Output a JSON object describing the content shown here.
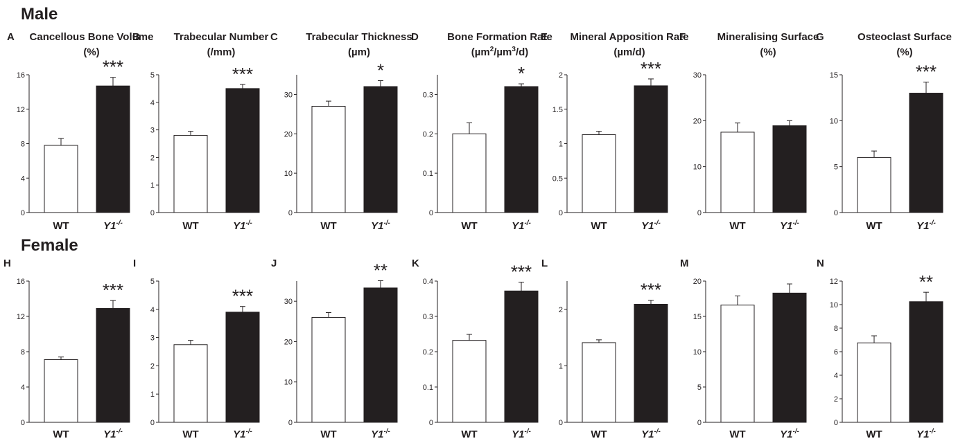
{
  "colors": {
    "wt_bar": "#ffffff",
    "ko_bar": "#231f20",
    "axis": "#231f20",
    "text": "#231f20"
  },
  "groups": [
    {
      "title": "Male"
    },
    {
      "title": "Female"
    }
  ],
  "chart_data": [
    {
      "type": "bar",
      "letter": "A",
      "title": "Cancellous Bone Volume",
      "unit": "(%)",
      "sup": "",
      "unit_after": "",
      "categories": [
        "WT",
        "Y1-/-"
      ],
      "values": [
        7.8,
        14.7
      ],
      "errors": [
        0.8,
        1.0
      ],
      "ylim": [
        0,
        16
      ],
      "yticks": [
        0,
        4,
        8,
        12,
        16
      ],
      "significance": "***"
    },
    {
      "type": "bar",
      "letter": "B",
      "title": "Trabecular Number",
      "unit": "(/mm)",
      "sup": "",
      "unit_after": "",
      "categories": [
        "WT",
        "Y1-/-"
      ],
      "values": [
        2.8,
        4.5
      ],
      "errors": [
        0.15,
        0.15
      ],
      "ylim": [
        0,
        5
      ],
      "yticks": [
        0,
        1,
        2,
        3,
        4,
        5
      ],
      "significance": "***"
    },
    {
      "type": "bar",
      "letter": "C",
      "title": "Trabecular Thickness",
      "unit": "(µm)",
      "sup": "",
      "unit_after": "",
      "categories": [
        "WT",
        "Y1-/-"
      ],
      "values": [
        27,
        32
      ],
      "errors": [
        1.3,
        1.5
      ],
      "ylim": [
        0,
        35
      ],
      "yticks": [
        0,
        10,
        20,
        30
      ],
      "significance": "*"
    },
    {
      "type": "bar",
      "letter": "D",
      "title": "Bone Formation Rate",
      "unit": "(µm",
      "sup": "2",
      "unit_after": "/µm",
      "sup2": "3",
      "unit_tail": "/d)",
      "categories": [
        "WT",
        "Y1-/-"
      ],
      "values": [
        0.2,
        0.32
      ],
      "errors": [
        0.028,
        0.007
      ],
      "ylim": [
        0,
        0.35
      ],
      "yticks": [
        0,
        0.1,
        0.2,
        0.3
      ],
      "significance": "*"
    },
    {
      "type": "bar",
      "letter": "E",
      "title": "Mineral Apposition Rate",
      "unit": "(µm/d)",
      "sup": "",
      "unit_after": "",
      "categories": [
        "WT",
        "Y1-/-"
      ],
      "values": [
        1.13,
        1.84
      ],
      "errors": [
        0.05,
        0.1
      ],
      "ylim": [
        0,
        2
      ],
      "yticks": [
        0,
        0.5,
        1,
        1.5,
        2
      ],
      "significance": "***"
    },
    {
      "type": "bar",
      "letter": "F",
      "title": "Mineralising Surface",
      "unit": "(%)",
      "sup": "",
      "unit_after": "",
      "categories": [
        "WT",
        "Y1-/-"
      ],
      "values": [
        17.5,
        18.9
      ],
      "errors": [
        2.0,
        1.1
      ],
      "ylim": [
        0,
        30
      ],
      "yticks": [
        0,
        10,
        20,
        30
      ],
      "significance": ""
    },
    {
      "type": "bar",
      "letter": "G",
      "title": "Osteoclast Surface",
      "unit": "(%)",
      "sup": "",
      "unit_after": "",
      "categories": [
        "WT",
        "Y1-/-"
      ],
      "values": [
        6.0,
        13.0
      ],
      "errors": [
        0.7,
        1.2
      ],
      "ylim": [
        0,
        15
      ],
      "yticks": [
        0,
        5,
        10,
        15
      ],
      "significance": "***"
    },
    {
      "type": "bar",
      "letter": "H",
      "title": "",
      "unit": "",
      "sup": "",
      "unit_after": "",
      "categories": [
        "WT",
        "Y1-/-"
      ],
      "values": [
        7.1,
        12.9
      ],
      "errors": [
        0.3,
        0.9
      ],
      "ylim": [
        0,
        16
      ],
      "yticks": [
        0,
        4,
        8,
        12,
        16
      ],
      "significance": "***"
    },
    {
      "type": "bar",
      "letter": "I",
      "title": "",
      "unit": "",
      "sup": "",
      "unit_after": "",
      "categories": [
        "WT",
        "Y1-/-"
      ],
      "values": [
        2.75,
        3.9
      ],
      "errors": [
        0.15,
        0.2
      ],
      "ylim": [
        0,
        5
      ],
      "yticks": [
        0,
        1,
        2,
        3,
        4,
        5
      ],
      "significance": "***"
    },
    {
      "type": "bar",
      "letter": "J",
      "title": "",
      "unit": "",
      "sup": "",
      "unit_after": "",
      "categories": [
        "WT",
        "Y1-/-"
      ],
      "values": [
        26,
        33.3
      ],
      "errors": [
        1.2,
        1.8
      ],
      "ylim": [
        0,
        35
      ],
      "yticks": [
        0,
        10,
        20,
        30
      ],
      "significance": "**"
    },
    {
      "type": "bar",
      "letter": "K",
      "title": "",
      "unit": "",
      "sup": "",
      "unit_after": "",
      "categories": [
        "WT",
        "Y1-/-"
      ],
      "values": [
        0.232,
        0.372
      ],
      "errors": [
        0.017,
        0.025
      ],
      "ylim": [
        0,
        0.4
      ],
      "yticks": [
        0,
        0.1,
        0.2,
        0.3,
        0.4
      ],
      "significance": "***"
    },
    {
      "type": "bar",
      "letter": "L",
      "title": "",
      "unit": "",
      "sup": "",
      "unit_after": "",
      "categories": [
        "WT",
        "Y1-/-"
      ],
      "values": [
        1.41,
        2.09
      ],
      "errors": [
        0.05,
        0.07
      ],
      "ylim": [
        0,
        2.5
      ],
      "yticks": [
        0,
        1,
        2
      ],
      "significance": "***"
    },
    {
      "type": "bar",
      "letter": "M",
      "title": "",
      "unit": "",
      "sup": "",
      "unit_after": "",
      "categories": [
        "WT",
        "Y1-/-"
      ],
      "values": [
        16.6,
        18.3
      ],
      "errors": [
        1.3,
        1.3
      ],
      "ylim": [
        0,
        20
      ],
      "yticks": [
        0,
        5,
        10,
        15,
        20
      ],
      "significance": ""
    },
    {
      "type": "bar",
      "letter": "N",
      "title": "",
      "unit": "",
      "sup": "",
      "unit_after": "",
      "categories": [
        "WT",
        "Y1-/-"
      ],
      "values": [
        6.75,
        10.25
      ],
      "errors": [
        0.6,
        0.8
      ],
      "ylim": [
        0,
        12
      ],
      "yticks": [
        0,
        2,
        4,
        6,
        8,
        10,
        12
      ],
      "significance": "**"
    }
  ]
}
